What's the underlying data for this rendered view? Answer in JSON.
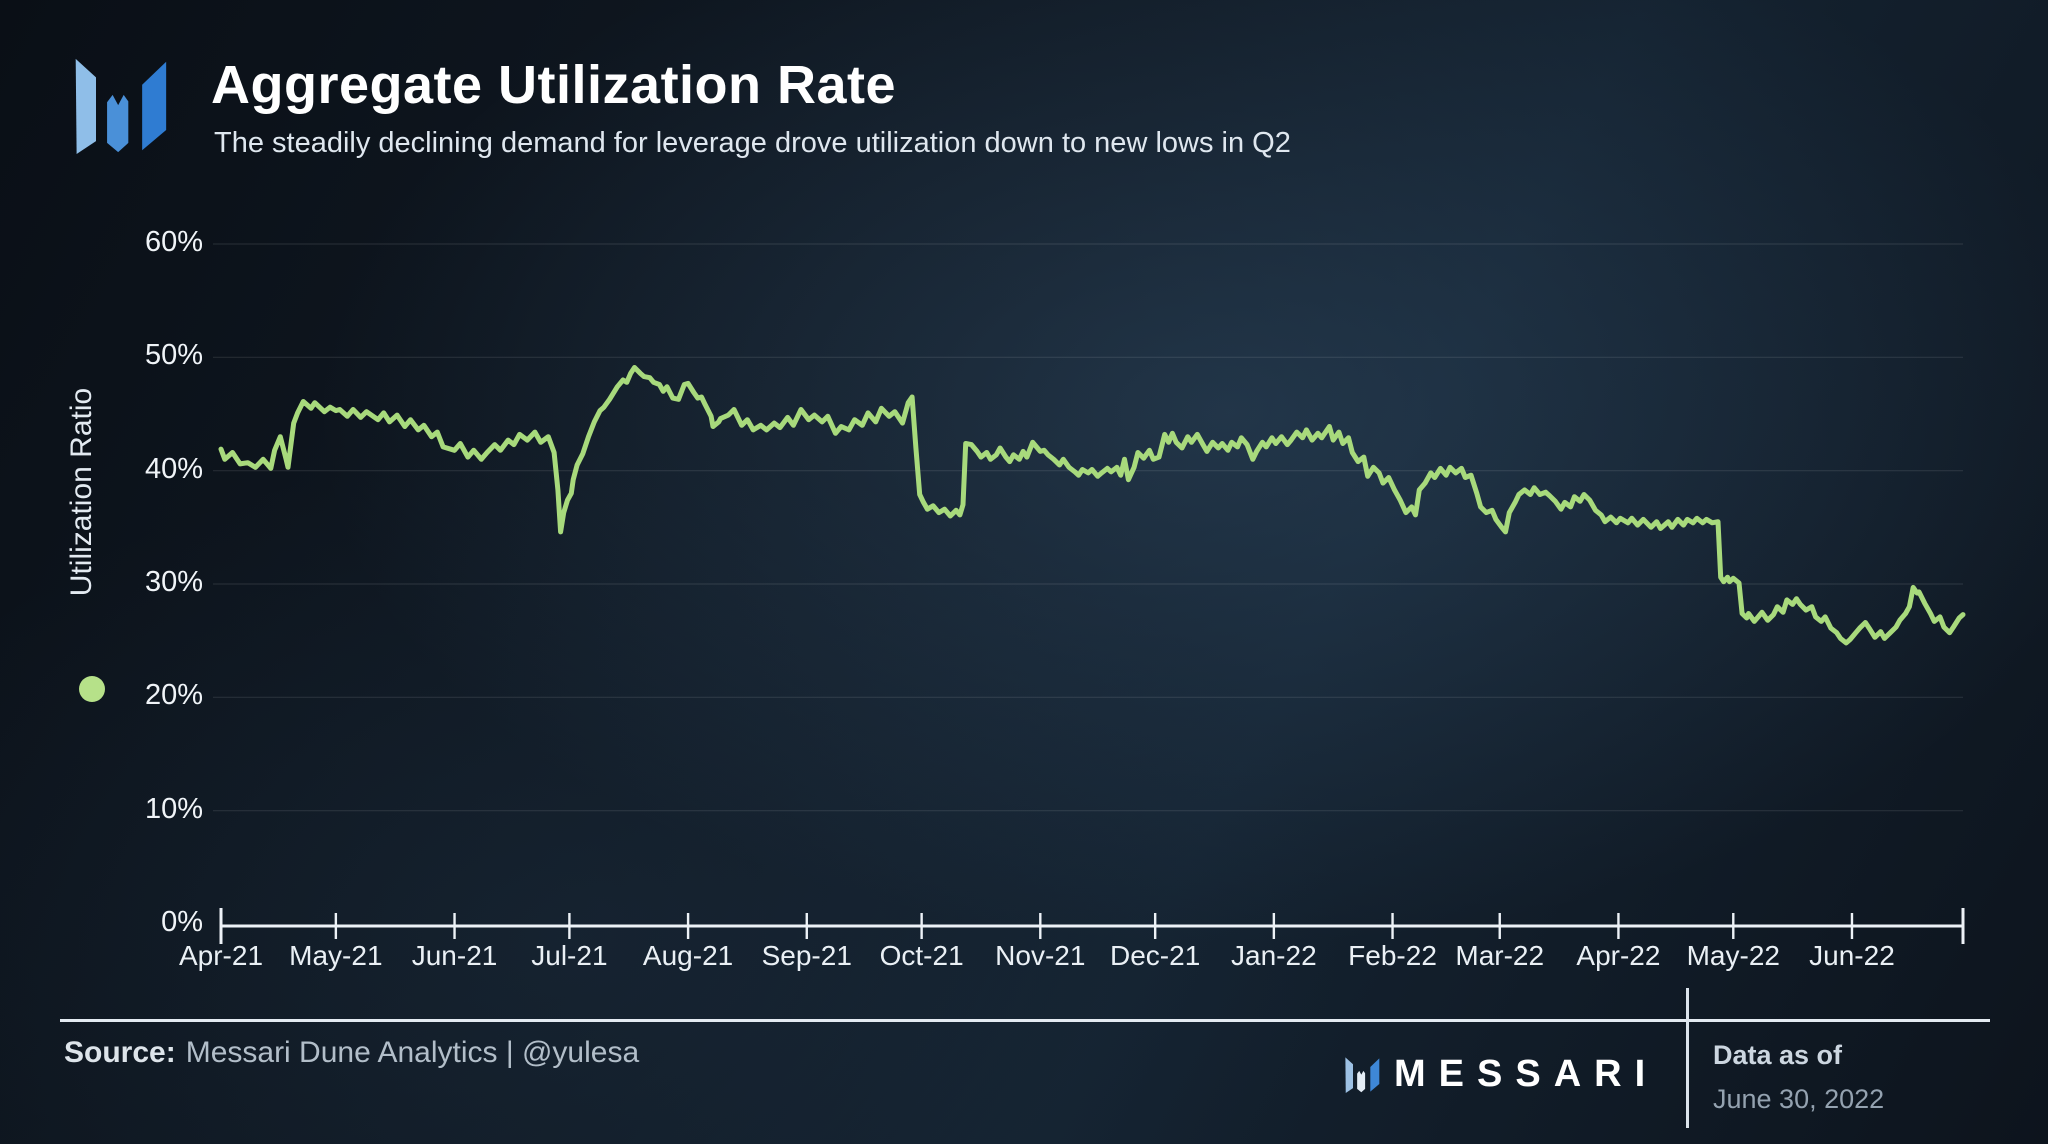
{
  "header": {
    "title": "Aggregate Utilization Rate",
    "subtitle": "The steadily declining demand for leverage drove utilization down to new lows in Q2"
  },
  "footer": {
    "source_label": "Source:",
    "source_text": "Messari Dune Analytics | @yulesa",
    "brand": "MESSARI",
    "data_as_of_label": "Data as of",
    "data_as_of_value": "June 30, 2022"
  },
  "colors": {
    "line_green": "#a8da7c",
    "legend_green": "#b6e189",
    "brand_blue_light": "#8fbee8",
    "brand_blue_mid": "#4a90d8",
    "brand_blue_dark": "#2f7cd2",
    "background_navy": "#101b26"
  },
  "chart_data": {
    "type": "line",
    "title": "Aggregate Utilization Rate",
    "ylabel": "Utilization Ratio",
    "series_name": "Utilization Ratio",
    "line_color": "#a8da7c",
    "legend_dot_color": "#b6e189",
    "grid": true,
    "legend_position": "left",
    "ylim": [
      0,
      60
    ],
    "x_unit": "days since 2021-04-01",
    "x_domain_days": [
      0,
      455
    ],
    "y_ticks": [
      {
        "pct": 0,
        "label": "0%"
      },
      {
        "pct": 10,
        "label": "10%"
      },
      {
        "pct": 20,
        "label": "20%"
      },
      {
        "pct": 30,
        "label": "30%"
      },
      {
        "pct": 40,
        "label": "40%"
      },
      {
        "pct": 50,
        "label": "50%"
      },
      {
        "pct": 60,
        "label": "60%"
      }
    ],
    "x_ticks": [
      {
        "day": 0,
        "label": "Apr-21"
      },
      {
        "day": 30,
        "label": "May-21"
      },
      {
        "day": 61,
        "label": "Jun-21"
      },
      {
        "day": 91,
        "label": "Jul-21"
      },
      {
        "day": 122,
        "label": "Aug-21"
      },
      {
        "day": 153,
        "label": "Sep-21"
      },
      {
        "day": 183,
        "label": "Oct-21"
      },
      {
        "day": 214,
        "label": "Nov-21"
      },
      {
        "day": 244,
        "label": "Dec-21"
      },
      {
        "day": 275,
        "label": "Jan-22"
      },
      {
        "day": 306,
        "label": "Feb-22"
      },
      {
        "day": 334,
        "label": "Mar-22"
      },
      {
        "day": 365,
        "label": "Apr-22"
      },
      {
        "day": 395,
        "label": "May-22"
      },
      {
        "day": 426,
        "label": "Jun-22"
      }
    ],
    "points": [
      [
        0,
        41.9
      ],
      [
        1,
        41.0
      ],
      [
        3,
        41.6
      ],
      [
        5,
        40.6
      ],
      [
        7,
        40.7
      ],
      [
        9,
        40.3
      ],
      [
        11,
        41.0
      ],
      [
        13,
        40.2
      ],
      [
        14,
        41.8
      ],
      [
        15.5,
        43.0
      ],
      [
        17,
        41.0
      ],
      [
        17.5,
        40.3
      ],
      [
        19,
        44.2
      ],
      [
        20,
        45.1
      ],
      [
        21.5,
        46.1
      ],
      [
        23.5,
        45.5
      ],
      [
        24.5,
        46.0
      ],
      [
        27,
        45.2
      ],
      [
        28.5,
        45.6
      ],
      [
        30,
        45.3
      ],
      [
        31,
        45.4
      ],
      [
        33,
        44.8
      ],
      [
        34.5,
        45.4
      ],
      [
        36.5,
        44.7
      ],
      [
        38,
        45.2
      ],
      [
        41,
        44.5
      ],
      [
        42.5,
        45.1
      ],
      [
        44,
        44.3
      ],
      [
        46,
        44.9
      ],
      [
        48,
        43.9
      ],
      [
        49.5,
        44.5
      ],
      [
        51.5,
        43.6
      ],
      [
        53,
        44.0
      ],
      [
        55,
        43.0
      ],
      [
        56.5,
        43.4
      ],
      [
        58,
        42.1
      ],
      [
        61,
        41.8
      ],
      [
        62.5,
        42.4
      ],
      [
        64.5,
        41.2
      ],
      [
        66,
        41.8
      ],
      [
        68,
        41.0
      ],
      [
        69.5,
        41.6
      ],
      [
        71.5,
        42.3
      ],
      [
        73,
        41.8
      ],
      [
        75,
        42.7
      ],
      [
        76.5,
        42.3
      ],
      [
        78,
        43.2
      ],
      [
        80,
        42.7
      ],
      [
        82,
        43.4
      ],
      [
        83.5,
        42.5
      ],
      [
        85.5,
        43.0
      ],
      [
        87,
        41.6
      ],
      [
        88,
        38.3
      ],
      [
        88.7,
        34.6
      ],
      [
        89.5,
        36.3
      ],
      [
        90.5,
        37.4
      ],
      [
        91.5,
        38.0
      ],
      [
        92,
        39.2
      ],
      [
        93,
        40.5
      ],
      [
        94.5,
        41.5
      ],
      [
        96,
        43.0
      ],
      [
        97.5,
        44.3
      ],
      [
        99,
        45.3
      ],
      [
        100,
        45.6
      ],
      [
        101.5,
        46.3
      ],
      [
        103.5,
        47.4
      ],
      [
        105,
        48.0
      ],
      [
        106,
        47.8
      ],
      [
        107,
        48.6
      ],
      [
        108,
        49.1
      ],
      [
        109.5,
        48.6
      ],
      [
        110.5,
        48.3
      ],
      [
        112,
        48.2
      ],
      [
        113,
        47.8
      ],
      [
        114.5,
        47.6
      ],
      [
        115.5,
        47.0
      ],
      [
        116.5,
        47.4
      ],
      [
        118,
        46.4
      ],
      [
        119.5,
        46.3
      ],
      [
        121,
        47.6
      ],
      [
        122,
        47.7
      ],
      [
        123.5,
        46.9
      ],
      [
        124.5,
        46.4
      ],
      [
        125.5,
        46.5
      ],
      [
        126.5,
        45.8
      ],
      [
        128,
        44.8
      ],
      [
        128.5,
        43.9
      ],
      [
        130,
        44.3
      ],
      [
        130.5,
        44.6
      ],
      [
        132.5,
        44.9
      ],
      [
        134,
        45.4
      ],
      [
        136,
        44.0
      ],
      [
        137.5,
        44.5
      ],
      [
        139,
        43.6
      ],
      [
        141,
        44.0
      ],
      [
        142.5,
        43.6
      ],
      [
        144.5,
        44.2
      ],
      [
        146,
        43.8
      ],
      [
        148,
        44.7
      ],
      [
        149.5,
        44.0
      ],
      [
        151.5,
        45.4
      ],
      [
        153.5,
        44.5
      ],
      [
        155,
        44.9
      ],
      [
        157,
        44.3
      ],
      [
        158.5,
        44.8
      ],
      [
        160.5,
        43.3
      ],
      [
        162,
        43.9
      ],
      [
        164,
        43.6
      ],
      [
        165.5,
        44.5
      ],
      [
        167.5,
        44.0
      ],
      [
        169,
        45.1
      ],
      [
        171,
        44.3
      ],
      [
        172.5,
        45.5
      ],
      [
        174.5,
        44.8
      ],
      [
        176,
        45.2
      ],
      [
        178,
        44.2
      ],
      [
        179.5,
        46.0
      ],
      [
        180.5,
        46.5
      ],
      [
        181.5,
        42.0
      ],
      [
        182.5,
        37.9
      ],
      [
        183.5,
        37.2
      ],
      [
        184.5,
        36.6
      ],
      [
        186,
        36.9
      ],
      [
        187.5,
        36.3
      ],
      [
        189,
        36.6
      ],
      [
        190.5,
        36.0
      ],
      [
        192,
        36.5
      ],
      [
        193,
        36.1
      ],
      [
        193.8,
        37.0
      ],
      [
        194.5,
        42.4
      ],
      [
        196,
        42.3
      ],
      [
        197.5,
        41.7
      ],
      [
        198.5,
        41.2
      ],
      [
        200,
        41.6
      ],
      [
        201,
        41.0
      ],
      [
        202.5,
        41.4
      ],
      [
        203.5,
        42.0
      ],
      [
        205,
        41.2
      ],
      [
        206,
        40.8
      ],
      [
        207,
        41.4
      ],
      [
        208.5,
        41.0
      ],
      [
        209.5,
        41.7
      ],
      [
        210.5,
        41.2
      ],
      [
        212,
        42.5
      ],
      [
        213,
        42.1
      ],
      [
        214,
        41.7
      ],
      [
        215,
        41.8
      ],
      [
        216,
        41.4
      ],
      [
        217.5,
        41.0
      ],
      [
        219,
        40.5
      ],
      [
        220,
        41.0
      ],
      [
        221.5,
        40.3
      ],
      [
        223,
        39.9
      ],
      [
        224,
        39.6
      ],
      [
        225,
        40.1
      ],
      [
        226.5,
        39.8
      ],
      [
        227.5,
        40.1
      ],
      [
        229,
        39.5
      ],
      [
        230,
        39.8
      ],
      [
        231.5,
        40.2
      ],
      [
        232.5,
        39.9
      ],
      [
        234,
        40.3
      ],
      [
        235,
        39.6
      ],
      [
        236,
        41.0
      ],
      [
        237,
        39.2
      ],
      [
        238.5,
        40.3
      ],
      [
        239.5,
        41.6
      ],
      [
        241,
        41.1
      ],
      [
        242.5,
        41.8
      ],
      [
        243.5,
        41.0
      ],
      [
        245,
        41.2
      ],
      [
        246.5,
        43.2
      ],
      [
        247.5,
        42.5
      ],
      [
        248.5,
        43.3
      ],
      [
        249.5,
        42.5
      ],
      [
        251,
        42.0
      ],
      [
        252.5,
        43.0
      ],
      [
        253.5,
        42.5
      ],
      [
        255,
        43.2
      ],
      [
        256.5,
        42.3
      ],
      [
        257.5,
        41.7
      ],
      [
        259,
        42.5
      ],
      [
        260.5,
        42.0
      ],
      [
        261.5,
        42.4
      ],
      [
        263,
        41.8
      ],
      [
        264,
        42.5
      ],
      [
        265.5,
        42.1
      ],
      [
        266.5,
        42.9
      ],
      [
        268,
        42.3
      ],
      [
        269.5,
        41.0
      ],
      [
        270.5,
        41.7
      ],
      [
        272,
        42.5
      ],
      [
        273,
        42.1
      ],
      [
        274.5,
        42.9
      ],
      [
        275.5,
        42.4
      ],
      [
        277,
        43.0
      ],
      [
        278.5,
        42.3
      ],
      [
        279.5,
        42.7
      ],
      [
        281,
        43.4
      ],
      [
        282.5,
        42.9
      ],
      [
        283.5,
        43.6
      ],
      [
        285,
        42.7
      ],
      [
        286.5,
        43.3
      ],
      [
        287.5,
        42.9
      ],
      [
        289.5,
        43.9
      ],
      [
        290.5,
        42.7
      ],
      [
        292,
        43.4
      ],
      [
        293,
        42.4
      ],
      [
        294.5,
        42.9
      ],
      [
        295.5,
        41.6
      ],
      [
        297,
        40.8
      ],
      [
        298.5,
        41.2
      ],
      [
        299.5,
        39.5
      ],
      [
        301,
        40.3
      ],
      [
        302.5,
        39.8
      ],
      [
        303.5,
        38.9
      ],
      [
        305,
        39.4
      ],
      [
        306.5,
        38.3
      ],
      [
        308,
        37.4
      ],
      [
        309.5,
        36.3
      ],
      [
        311,
        36.8
      ],
      [
        312,
        36.1
      ],
      [
        313,
        38.3
      ],
      [
        314.5,
        38.9
      ],
      [
        316,
        39.8
      ],
      [
        317,
        39.4
      ],
      [
        318.5,
        40.2
      ],
      [
        320,
        39.6
      ],
      [
        321,
        40.3
      ],
      [
        322.5,
        39.8
      ],
      [
        324,
        40.2
      ],
      [
        325,
        39.4
      ],
      [
        326.5,
        39.6
      ],
      [
        328,
        38.0
      ],
      [
        329,
        36.8
      ],
      [
        330.5,
        36.3
      ],
      [
        332,
        36.5
      ],
      [
        333,
        35.7
      ],
      [
        334.5,
        35.0
      ],
      [
        335.5,
        34.6
      ],
      [
        336.5,
        36.3
      ],
      [
        338,
        37.2
      ],
      [
        339,
        37.9
      ],
      [
        340.5,
        38.3
      ],
      [
        342,
        37.9
      ],
      [
        343,
        38.5
      ],
      [
        344.5,
        37.9
      ],
      [
        346,
        38.1
      ],
      [
        347,
        37.8
      ],
      [
        348.5,
        37.3
      ],
      [
        350,
        36.6
      ],
      [
        351,
        37.2
      ],
      [
        352.5,
        36.8
      ],
      [
        353.5,
        37.7
      ],
      [
        355,
        37.3
      ],
      [
        356,
        37.9
      ],
      [
        357.5,
        37.4
      ],
      [
        359,
        36.5
      ],
      [
        360.5,
        36.1
      ],
      [
        361.5,
        35.5
      ],
      [
        363,
        35.9
      ],
      [
        364.5,
        35.4
      ],
      [
        365.5,
        35.8
      ],
      [
        367.5,
        35.4
      ],
      [
        368.5,
        35.8
      ],
      [
        370,
        35.2
      ],
      [
        371.5,
        35.7
      ],
      [
        373.5,
        35.0
      ],
      [
        375,
        35.5
      ],
      [
        376,
        34.9
      ],
      [
        378,
        35.5
      ],
      [
        379,
        35.0
      ],
      [
        380.5,
        35.7
      ],
      [
        382,
        35.2
      ],
      [
        383,
        35.7
      ],
      [
        384.5,
        35.4
      ],
      [
        385.5,
        35.8
      ],
      [
        387,
        35.4
      ],
      [
        388,
        35.7
      ],
      [
        389.5,
        35.4
      ],
      [
        391,
        35.5
      ],
      [
        391.7,
        30.6
      ],
      [
        392.5,
        30.2
      ],
      [
        393.5,
        30.6
      ],
      [
        394,
        30.2
      ],
      [
        395,
        30.5
      ],
      [
        396.5,
        30.1
      ],
      [
        397.3,
        27.4
      ],
      [
        398.5,
        27.0
      ],
      [
        399,
        27.4
      ],
      [
        400.5,
        26.7
      ],
      [
        401.5,
        27.1
      ],
      [
        402.5,
        27.5
      ],
      [
        404,
        26.8
      ],
      [
        405.5,
        27.3
      ],
      [
        406.5,
        28.0
      ],
      [
        408,
        27.5
      ],
      [
        409,
        28.6
      ],
      [
        410.5,
        28.2
      ],
      [
        411.5,
        28.7
      ],
      [
        412.5,
        28.2
      ],
      [
        414,
        27.7
      ],
      [
        415.5,
        28.0
      ],
      [
        416.5,
        27.1
      ],
      [
        418,
        26.7
      ],
      [
        419,
        27.1
      ],
      [
        420.5,
        26.1
      ],
      [
        422,
        25.7
      ],
      [
        423,
        25.2
      ],
      [
        424.5,
        24.8
      ],
      [
        425.5,
        25.1
      ],
      [
        427,
        25.7
      ],
      [
        428,
        26.1
      ],
      [
        429.5,
        26.6
      ],
      [
        430.5,
        26.1
      ],
      [
        432,
        25.3
      ],
      [
        433.5,
        25.8
      ],
      [
        434.5,
        25.2
      ],
      [
        436,
        25.7
      ],
      [
        437.5,
        26.2
      ],
      [
        438.5,
        26.8
      ],
      [
        440,
        27.4
      ],
      [
        441,
        28.0
      ],
      [
        442,
        29.7
      ],
      [
        443,
        29.2
      ],
      [
        443.5,
        29.3
      ],
      [
        445,
        28.3
      ],
      [
        446.5,
        27.4
      ],
      [
        447.5,
        26.7
      ],
      [
        449,
        27.1
      ],
      [
        450,
        26.2
      ],
      [
        451.5,
        25.7
      ],
      [
        452.5,
        26.2
      ],
      [
        454,
        27.0
      ],
      [
        455,
        27.3
      ]
    ]
  }
}
